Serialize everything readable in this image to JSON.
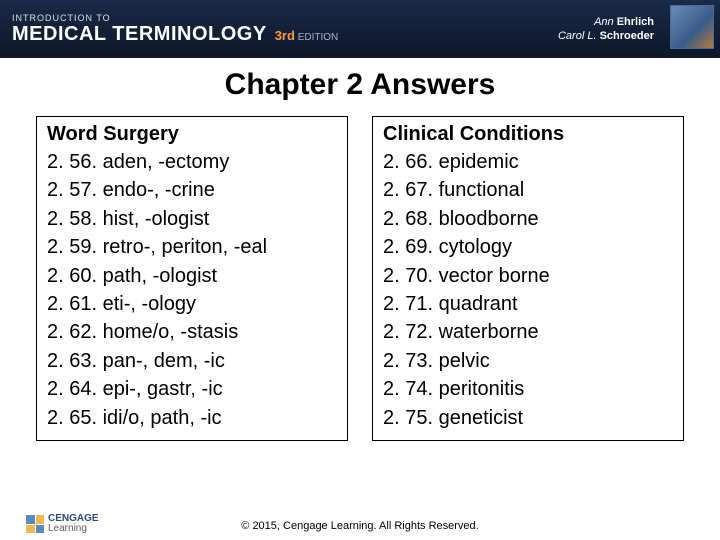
{
  "header": {
    "intro": "INTRODUCTION TO",
    "title": "MEDICAL TERMINOLOGY",
    "edition_num": "3rd",
    "edition_word": "EDITION",
    "author1_first": "Ann",
    "author1_last": "Ehrlich",
    "author2_first": "Carol L.",
    "author2_last": "Schroeder"
  },
  "slide_title": "Chapter 2 Answers",
  "left": {
    "heading": "Word Surgery",
    "items": [
      "2. 56. aden, -ectomy",
      "2. 57. endo-, -crine",
      "2. 58. hist, -ologist",
      "2. 59. retro-, periton, -eal",
      "2. 60. path, -ologist",
      "2. 61. eti-, -ology",
      "2. 62. home/o, -stasis",
      "2. 63. pan-, dem, -ic",
      "2. 64. epi-, gastr, -ic",
      "2. 65. idi/o, path, -ic"
    ]
  },
  "right": {
    "heading": "Clinical Conditions",
    "items": [
      "2. 66. epidemic",
      "2. 67. functional",
      "2. 68. bloodborne",
      "2. 69. cytology",
      "2. 70. vector borne",
      "2. 71. quadrant",
      "2. 72. waterborne",
      "2. 73. pelvic",
      "2. 74. peritonitis",
      "2. 75. geneticist"
    ]
  },
  "footer": {
    "copyright": "© 2015, Cengage Learning. All Rights Reserved.",
    "logo_top": "CENGAGE",
    "logo_bottom": "Learning"
  },
  "colors": {
    "header_bg_top": "#1a2a4a",
    "header_bg_bottom": "#0d1728",
    "accent_orange": "#ff9a3a",
    "border": "#000000",
    "text": "#000000",
    "background": "#ffffff"
  }
}
